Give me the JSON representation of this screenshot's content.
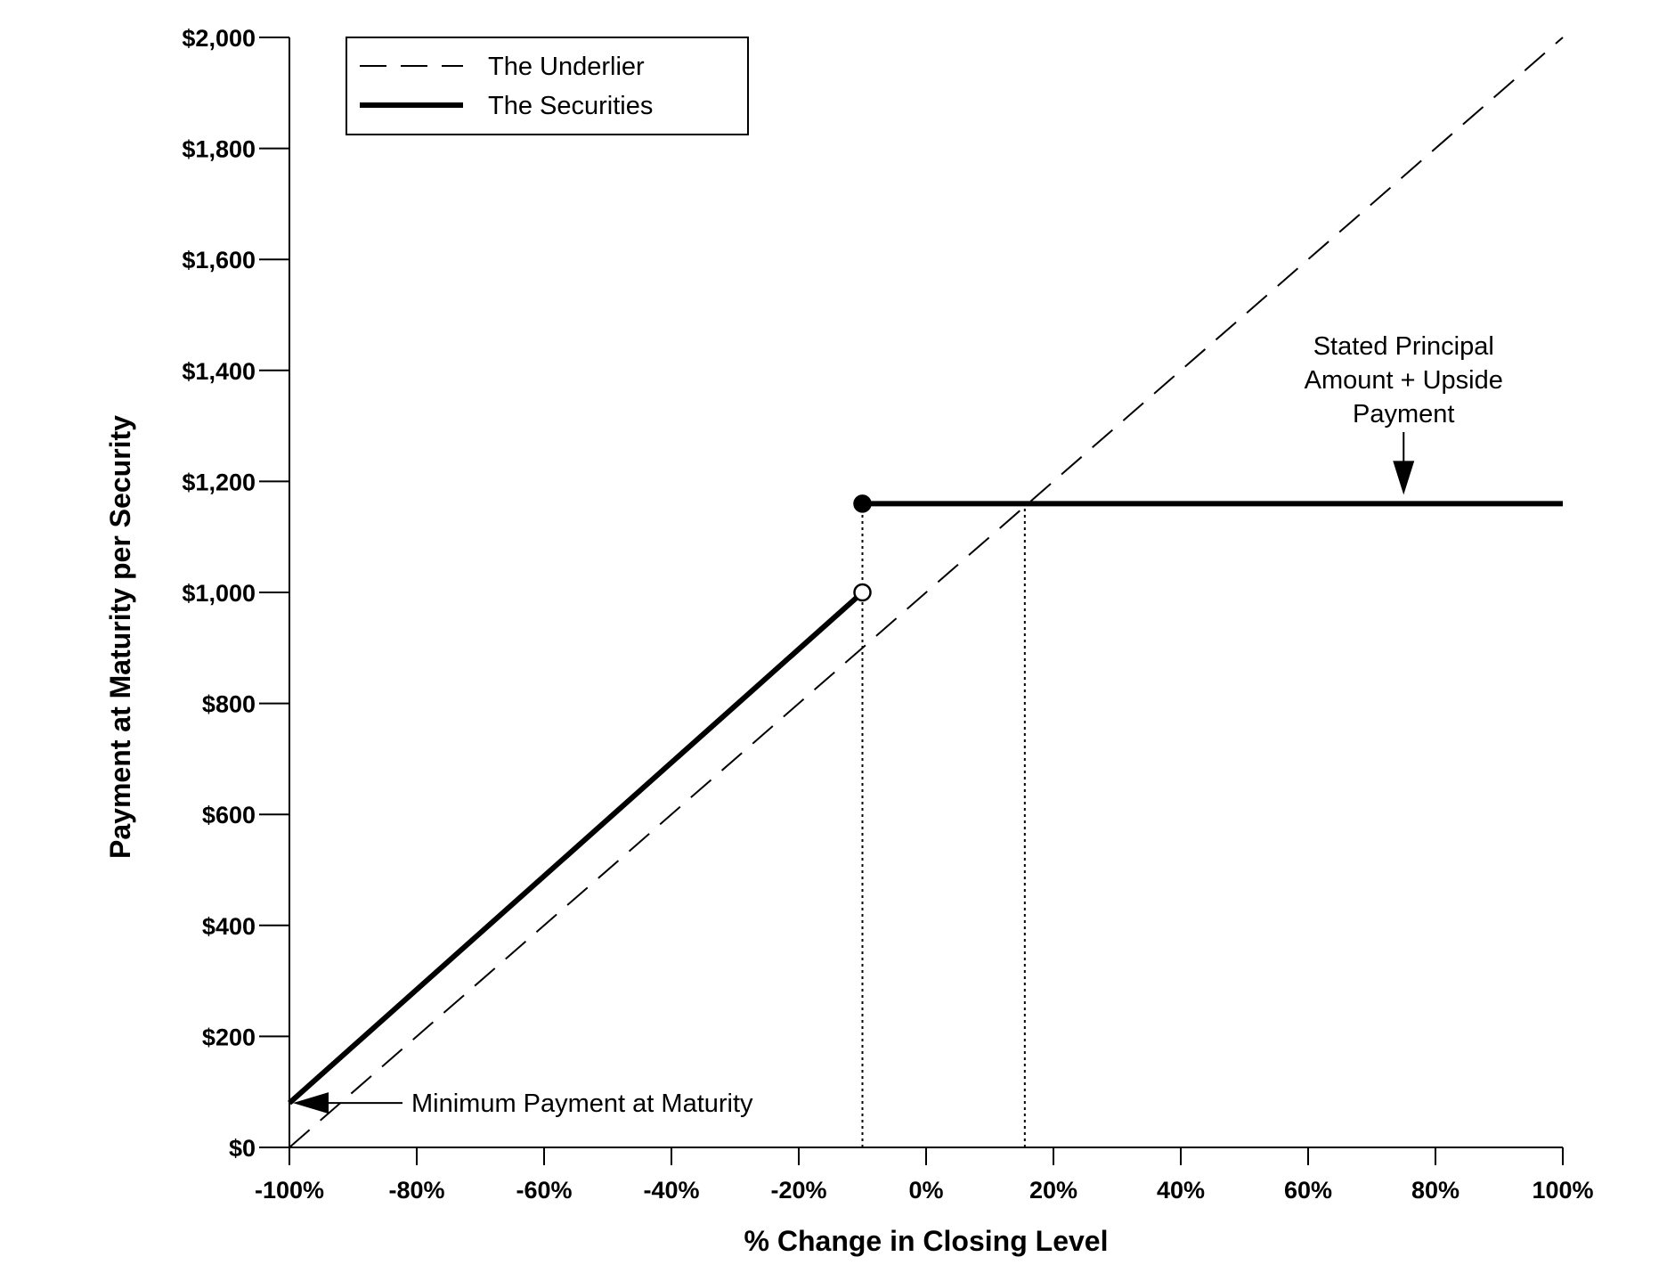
{
  "chart_data": {
    "type": "line",
    "xlabel": "% Change in Closing Level",
    "ylabel": "Payment at Maturity per Security",
    "xlim": [
      -100,
      100
    ],
    "ylim": [
      0,
      2000
    ],
    "x_ticks": [
      -100,
      -80,
      -60,
      -40,
      -20,
      0,
      20,
      40,
      60,
      80,
      100
    ],
    "x_tick_labels": [
      "-100%",
      "-80%",
      "-60%",
      "-40%",
      "-20%",
      "0%",
      "20%",
      "40%",
      "60%",
      "80%",
      "100%"
    ],
    "y_ticks": [
      0,
      200,
      400,
      600,
      800,
      1000,
      1200,
      1400,
      1600,
      1800,
      2000
    ],
    "y_tick_labels": [
      "$0",
      "$200",
      "$400",
      "$600",
      "$800",
      "$1,000",
      "$1,200",
      "$1,400",
      "$1,600",
      "$1,800",
      "$2,000"
    ],
    "grid": false,
    "legend_position": "top-left",
    "series": [
      {
        "name": "The Underlier",
        "style": "dashed",
        "x": [
          -100,
          100
        ],
        "y": [
          0,
          2000
        ]
      },
      {
        "name": "The Securities",
        "style": "solid-thick",
        "segments": [
          {
            "x": [
              -100,
              -10
            ],
            "y": [
              80,
              1000
            ]
          },
          {
            "x": [
              -10,
              100
            ],
            "y": [
              1160,
              1160
            ]
          }
        ],
        "markers": [
          {
            "x": -10,
            "y": 1000,
            "fill": "open"
          },
          {
            "x": -10,
            "y": 1160,
            "fill": "filled"
          }
        ]
      }
    ],
    "reference_lines": [
      {
        "x": -10,
        "y_from": 0,
        "y_to": 1160,
        "style": "dotted"
      },
      {
        "x": 15.5,
        "y_from": 0,
        "y_to": 1160,
        "style": "dotted"
      }
    ],
    "annotations": [
      {
        "lines": [
          "Minimum Payment at Maturity"
        ],
        "arrow_to": {
          "x": -100,
          "y": 80
        }
      },
      {
        "lines": [
          "Stated Principal",
          "Amount + Upside",
          "Payment"
        ],
        "arrow_to": {
          "x": 75,
          "y": 1160
        }
      }
    ],
    "colors": {
      "line": "#000000",
      "background": "#ffffff"
    }
  }
}
